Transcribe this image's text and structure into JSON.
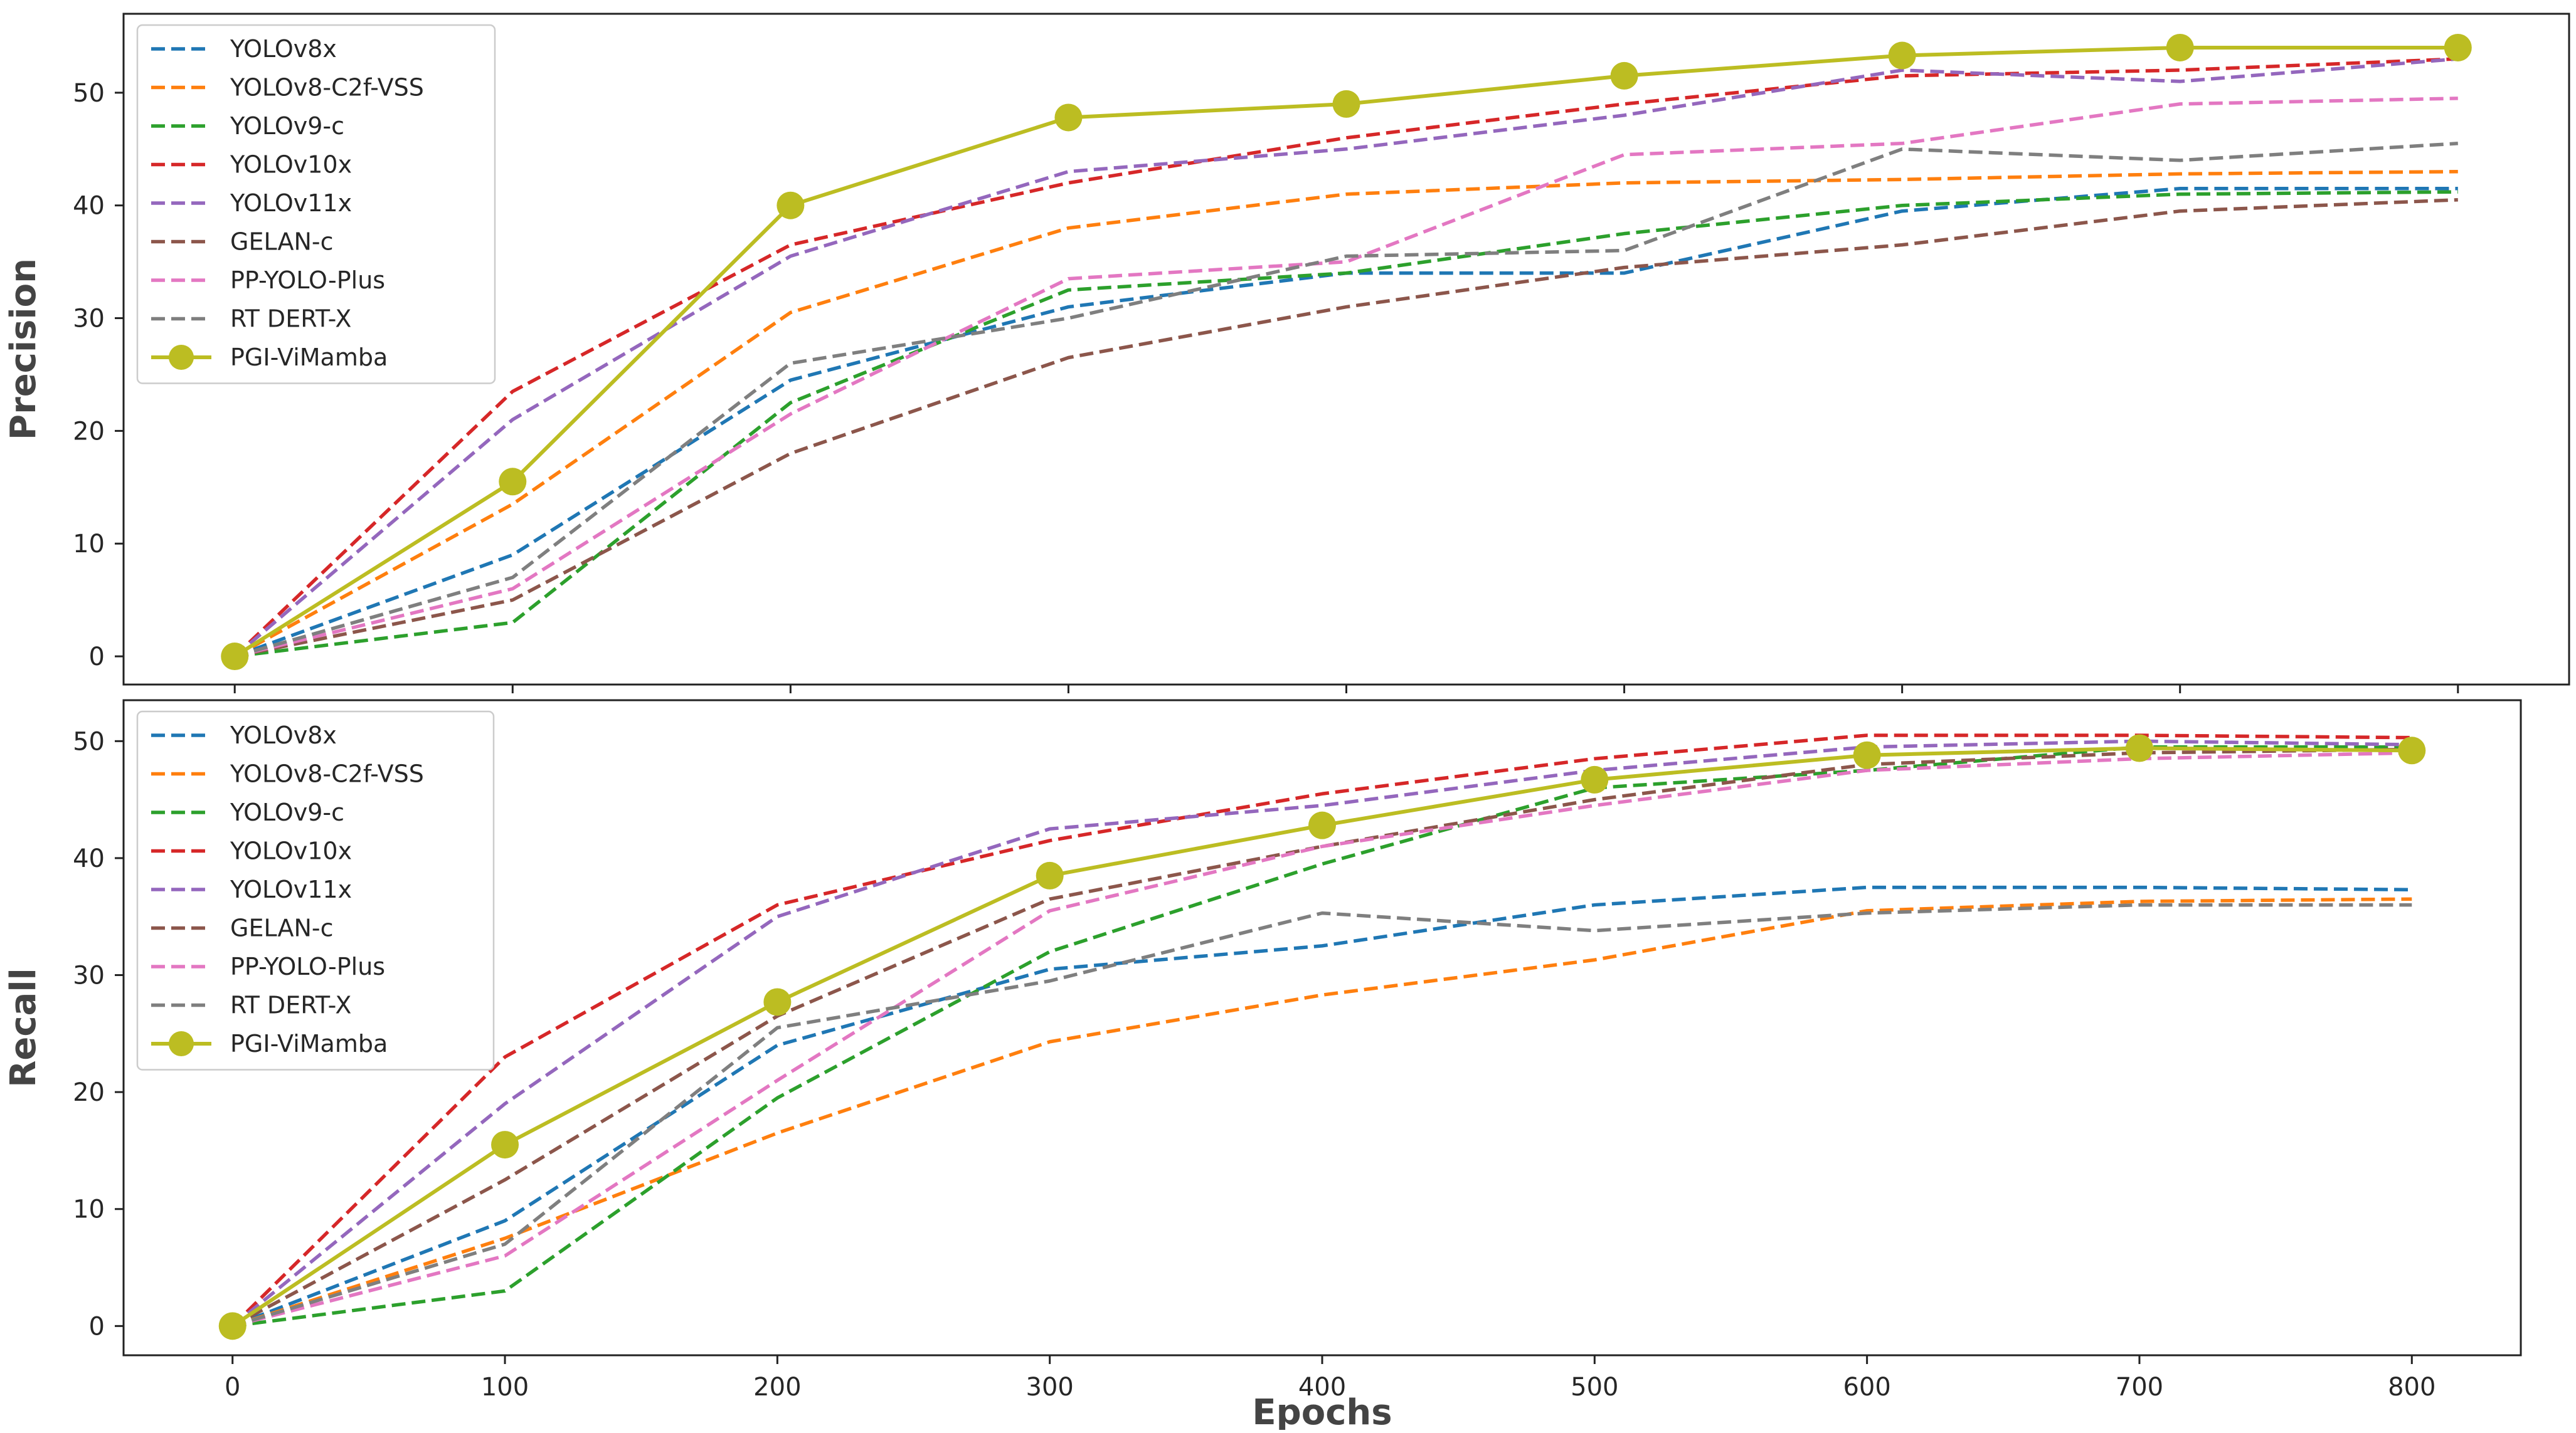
{
  "chart_data": [
    {
      "type": "line",
      "id": "precision",
      "title": "",
      "xlabel": "",
      "ylabel": "Precision",
      "x": [
        0,
        100,
        200,
        300,
        400,
        500,
        600,
        700,
        800
      ],
      "xlim": [
        -40,
        840
      ],
      "ylim": [
        -2.5,
        57
      ],
      "yticks": [
        0,
        10,
        20,
        30,
        40,
        50
      ],
      "xticks": [],
      "grid": false,
      "legend": "top-left",
      "series": [
        {
          "name": "YOLOv8x",
          "color": "#1f77b4",
          "style": "dashed",
          "values": [
            0,
            9,
            24.5,
            31,
            34,
            34,
            39.5,
            41.5,
            41.5
          ]
        },
        {
          "name": "YOLOv8-C2f-VSS",
          "color": "#ff7f0e",
          "style": "dashed",
          "values": [
            0,
            13.5,
            30.5,
            38,
            41,
            42,
            42.3,
            42.8,
            43
          ]
        },
        {
          "name": "YOLOv9-c",
          "color": "#2ca02c",
          "style": "dashed",
          "values": [
            0,
            3,
            22.5,
            32.5,
            34,
            37.5,
            40,
            41,
            41.2
          ]
        },
        {
          "name": "YOLOv10x",
          "color": "#d62728",
          "style": "dashed",
          "values": [
            0,
            23.5,
            36.5,
            42,
            46,
            49,
            51.5,
            52,
            53
          ]
        },
        {
          "name": "YOLOv11x",
          "color": "#9467bd",
          "style": "dashed",
          "values": [
            0,
            21,
            35.5,
            43,
            45,
            48,
            52,
            51,
            53
          ]
        },
        {
          "name": "GELAN-c",
          "color": "#8c564b",
          "style": "dashed",
          "values": [
            0,
            5,
            18,
            26.5,
            31,
            34.5,
            36.5,
            39.5,
            40.5
          ]
        },
        {
          "name": "PP-YOLO-Plus",
          "color": "#e377c2",
          "style": "dashed",
          "values": [
            0,
            6,
            21.5,
            33.5,
            35,
            44.5,
            45.5,
            49,
            49.5
          ]
        },
        {
          "name": "RT DERT-X",
          "color": "#7f7f7f",
          "style": "dashed",
          "values": [
            0,
            7,
            26,
            30,
            35.5,
            36,
            45,
            44,
            45.5
          ]
        },
        {
          "name": "PGI-ViMamba",
          "color": "#bcbd22",
          "style": "solid-marker",
          "values": [
            0,
            15.5,
            40,
            47.8,
            49,
            51.5,
            53.3,
            54,
            54
          ]
        }
      ]
    },
    {
      "type": "line",
      "id": "recall",
      "title": "",
      "xlabel": "Epochs",
      "ylabel": "Recall",
      "x": [
        0,
        100,
        200,
        300,
        400,
        500,
        600,
        700,
        800
      ],
      "xlim": [
        -40,
        840
      ],
      "ylim": [
        -2.5,
        53.5
      ],
      "yticks": [
        0,
        10,
        20,
        30,
        40,
        50
      ],
      "xticks": [
        "0",
        "100",
        "200",
        "300",
        "400",
        "500",
        "600",
        "700",
        "800"
      ],
      "grid": false,
      "legend": "top-left",
      "series": [
        {
          "name": "YOLOv8x",
          "color": "#1f77b4",
          "style": "dashed",
          "values": [
            0,
            9,
            24,
            30.5,
            32.5,
            36,
            37.5,
            37.5,
            37.3
          ]
        },
        {
          "name": "YOLOv8-C2f-VSS",
          "color": "#ff7f0e",
          "style": "dashed",
          "values": [
            0,
            7.5,
            16.5,
            24.3,
            28.3,
            31.3,
            35.5,
            36.3,
            36.5
          ]
        },
        {
          "name": "YOLOv9-c",
          "color": "#2ca02c",
          "style": "dashed",
          "values": [
            0,
            3,
            19.5,
            32,
            39.5,
            46,
            47.5,
            49.5,
            49.5
          ]
        },
        {
          "name": "YOLOv10x",
          "color": "#d62728",
          "style": "dashed",
          "values": [
            0,
            23,
            36,
            41.5,
            45.5,
            48.5,
            50.5,
            50.5,
            50.3
          ]
        },
        {
          "name": "YOLOv11x",
          "color": "#9467bd",
          "style": "dashed",
          "values": [
            0,
            19,
            35,
            42.5,
            44.5,
            47.5,
            49.5,
            50,
            49.7
          ]
        },
        {
          "name": "GELAN-c",
          "color": "#8c564b",
          "style": "dashed",
          "values": [
            0,
            12.5,
            26.5,
            36.5,
            41,
            45,
            48,
            49,
            49.3
          ]
        },
        {
          "name": "PP-YOLO-Plus",
          "color": "#e377c2",
          "style": "dashed",
          "values": [
            0,
            6,
            21,
            35.5,
            41,
            44.5,
            47.5,
            48.5,
            49
          ]
        },
        {
          "name": "RT DERT-X",
          "color": "#7f7f7f",
          "style": "dashed",
          "values": [
            0,
            7,
            25.5,
            29.5,
            35.3,
            33.8,
            35.3,
            36,
            36
          ]
        },
        {
          "name": "PGI-ViMamba",
          "color": "#bcbd22",
          "style": "solid-marker",
          "values": [
            0,
            15.5,
            27.7,
            38.5,
            42.8,
            46.7,
            48.8,
            49.4,
            49.2
          ]
        }
      ]
    }
  ]
}
